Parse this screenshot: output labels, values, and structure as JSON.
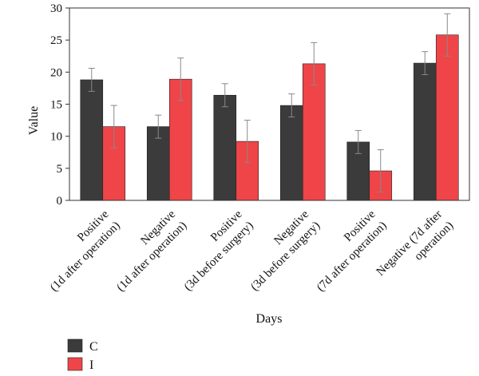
{
  "chart_data": {
    "type": "bar",
    "title": "",
    "xlabel": "Days",
    "ylabel": "Value",
    "ylim": [
      0,
      30
    ],
    "yticks": [
      0,
      5,
      10,
      15,
      20,
      25,
      30
    ],
    "grid": false,
    "legend_position": "bottom-left",
    "categories": [
      [
        "Positive",
        "(1d after operation)"
      ],
      [
        "Negative",
        "(1d after operation)"
      ],
      [
        "Positive",
        "(3d before surgery)"
      ],
      [
        "Negative",
        "(3d before surgery)"
      ],
      [
        "Positive",
        "(7d after operation)"
      ],
      [
        "Negative (7d after",
        "operation)"
      ]
    ],
    "series": [
      {
        "name": "C",
        "color": "#3b3b3b",
        "values": [
          18.8,
          11.5,
          16.4,
          14.8,
          9.1,
          21.4
        ],
        "errors": [
          1.8,
          1.8,
          1.8,
          1.8,
          1.8,
          1.8
        ]
      },
      {
        "name": "I",
        "color": "#ef4548",
        "values": [
          11.5,
          18.9,
          9.2,
          21.3,
          4.6,
          25.8
        ],
        "errors": [
          3.3,
          3.3,
          3.3,
          3.3,
          3.3,
          3.3
        ]
      }
    ]
  }
}
